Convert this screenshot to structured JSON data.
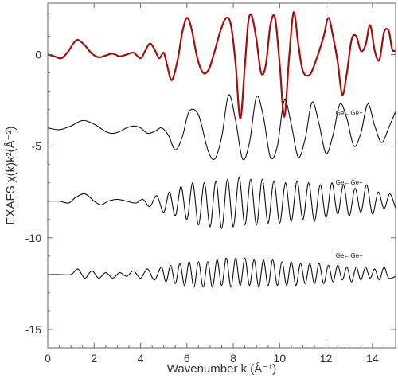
{
  "chart_data": {
    "type": "line",
    "title": "",
    "xlabel": "Wavenumber k (Å⁻¹)",
    "ylabel": "EXAFS χ(k)k²(Å⁻²)",
    "xlim": [
      0,
      15
    ],
    "ylim": [
      -16,
      2.8
    ],
    "xticks": [
      0,
      2,
      4,
      6,
      8,
      10,
      12,
      14
    ],
    "yticks": [
      0,
      -5,
      -10,
      -15
    ],
    "xtick_labels": [
      "0",
      "2",
      "4",
      "6",
      "8",
      "10",
      "12",
      "14"
    ],
    "ytick_labels": [
      "0",
      "-5",
      "-10",
      "-15"
    ],
    "grid": false,
    "colors": {
      "measured": "#a01010",
      "components": "#111111"
    },
    "annotations": [
      {
        "text": "Ge←Ge−",
        "x": 13.0,
        "y": -3.3
      },
      {
        "text": "Ge←Ge−",
        "x": 13.0,
        "y": -7.1
      },
      {
        "text": "Ge←Ge−",
        "x": 13.0,
        "y": -11.1
      }
    ],
    "series": [
      {
        "color": "#a01010",
        "x": [
          0,
          0.3,
          0.6,
          0.9,
          1.1,
          1.3,
          1.6,
          1.9,
          2.2,
          2.5,
          2.8,
          3.1,
          3.4,
          3.7,
          4.0,
          4.2,
          4.4,
          4.6,
          4.8,
          5.0,
          5.15,
          5.35,
          5.6,
          5.8,
          6.0,
          6.2,
          6.45,
          6.7,
          6.95,
          7.2,
          7.45,
          7.7,
          7.9,
          8.1,
          8.3,
          8.5,
          8.65,
          8.8,
          9.0,
          9.2,
          9.4,
          9.6,
          9.8,
          10.0,
          10.2,
          10.4,
          10.6,
          10.8,
          11.0,
          11.3,
          11.6,
          11.9,
          12.1,
          12.3,
          12.5,
          12.7,
          12.9,
          13.1,
          13.3,
          13.5,
          13.7,
          13.9,
          14.1,
          14.3,
          14.5,
          14.7,
          14.85,
          15.0
        ],
        "y": [
          0,
          -0.1,
          -0.2,
          0.2,
          0.6,
          0.8,
          0.5,
          0.05,
          -0.15,
          -0.05,
          0.05,
          -0.1,
          0,
          0.1,
          -0.2,
          0.2,
          0.6,
          0.3,
          -0.2,
          0.1,
          -0.6,
          -1.4,
          -0.3,
          1.2,
          2.0,
          1.4,
          -0.2,
          -1.0,
          -0.8,
          0.2,
          1.3,
          2.0,
          1.6,
          -0.5,
          -3.5,
          -0.6,
          1.8,
          2.1,
          0.8,
          -1.0,
          -0.6,
          1.6,
          2.0,
          -0.5,
          -3.4,
          -0.3,
          2.3,
          0.6,
          -0.9,
          -1.1,
          -0.2,
          1.0,
          2.0,
          1.0,
          -0.4,
          -2.2,
          -1.0,
          0.8,
          1.0,
          0.2,
          0.5,
          1.6,
          0.2,
          -0.3,
          1.2,
          1.3,
          0.3,
          0.2
        ]
      },
      {
        "color": "#111111",
        "x": [
          0,
          0.5,
          1.0,
          1.5,
          2.0,
          2.5,
          2.8,
          3.1,
          3.4,
          3.7,
          4.0,
          4.3,
          4.6,
          4.9,
          5.2,
          5.5,
          5.8,
          6.1,
          6.5,
          6.9,
          7.2,
          7.5,
          7.8,
          8.1,
          8.4,
          8.7,
          9.0,
          9.3,
          9.6,
          9.9,
          10.2,
          10.5,
          10.8,
          11.1,
          11.4,
          11.7,
          12.0,
          12.3,
          12.6,
          12.9,
          13.2,
          13.5,
          13.8,
          14.1,
          14.4,
          14.7,
          15.0
        ],
        "y": [
          -4.0,
          -4.1,
          -3.9,
          -3.6,
          -3.8,
          -4.2,
          -4.3,
          -4.2,
          -4.0,
          -3.9,
          -4.0,
          -4.3,
          -4.2,
          -4.0,
          -4.4,
          -5.2,
          -4.5,
          -3.1,
          -3.3,
          -5.2,
          -5.7,
          -4.5,
          -2.2,
          -3.6,
          -5.7,
          -4.8,
          -2.3,
          -3.4,
          -5.6,
          -5.0,
          -2.5,
          -3.8,
          -5.6,
          -4.6,
          -2.6,
          -3.8,
          -5.4,
          -4.4,
          -2.7,
          -3.5,
          -5.0,
          -4.3,
          -2.7,
          -3.9,
          -4.8,
          -4.0,
          -3.1
        ]
      },
      {
        "color": "#111111",
        "x": [
          0,
          0.5,
          0.9,
          1.2,
          1.6,
          2.0,
          2.3,
          2.6,
          3.0,
          3.4,
          3.8,
          4.1,
          4.4,
          4.7,
          5.0,
          5.25,
          5.5,
          5.75,
          6.0,
          6.25,
          6.5,
          6.75,
          7.0,
          7.25,
          7.5,
          7.75,
          8.0,
          8.25,
          8.5,
          8.75,
          9.0,
          9.25,
          9.5,
          9.75,
          10.0,
          10.25,
          10.5,
          10.75,
          11.0,
          11.25,
          11.5,
          11.75,
          12.0,
          12.25,
          12.5,
          12.75,
          13.0,
          13.25,
          13.5,
          13.75,
          14.0,
          14.25,
          14.5,
          14.75,
          15.0
        ],
        "y": [
          -8.0,
          -8.0,
          -8.1,
          -7.8,
          -7.6,
          -8.0,
          -8.2,
          -8.0,
          -7.9,
          -8.0,
          -8.1,
          -7.9,
          -8.3,
          -7.7,
          -8.6,
          -7.5,
          -8.8,
          -7.2,
          -9.0,
          -7.0,
          -9.3,
          -7.0,
          -9.4,
          -6.9,
          -9.5,
          -6.8,
          -9.4,
          -6.7,
          -9.3,
          -6.8,
          -9.3,
          -6.8,
          -9.2,
          -6.9,
          -9.2,
          -7.0,
          -9.1,
          -6.9,
          -9.0,
          -7.0,
          -9.1,
          -7.1,
          -8.9,
          -7.0,
          -8.7,
          -7.1,
          -8.8,
          -7.3,
          -8.6,
          -7.1,
          -8.7,
          -7.5,
          -8.4,
          -7.6,
          -8.4
        ]
      },
      {
        "color": "#111111",
        "x": [
          0,
          0.5,
          1.0,
          1.3,
          1.6,
          1.9,
          2.2,
          2.5,
          2.8,
          3.1,
          3.4,
          3.7,
          4.0,
          4.3,
          4.6,
          4.9,
          5.1,
          5.3,
          5.5,
          5.7,
          5.9,
          6.1,
          6.3,
          6.5,
          6.7,
          6.9,
          7.1,
          7.3,
          7.5,
          7.7,
          7.9,
          8.1,
          8.3,
          8.5,
          8.7,
          8.9,
          9.1,
          9.3,
          9.5,
          9.7,
          9.9,
          10.1,
          10.3,
          10.5,
          10.7,
          10.9,
          11.1,
          11.3,
          11.5,
          11.7,
          11.9,
          12.1,
          12.3,
          12.5,
          12.7,
          12.9,
          13.1,
          13.3,
          13.5,
          13.7,
          13.9,
          14.1,
          14.3,
          14.5,
          14.7,
          15.0
        ],
        "y": [
          -12.0,
          -12.0,
          -12.0,
          -11.7,
          -12.2,
          -11.8,
          -12.2,
          -11.9,
          -12.2,
          -11.9,
          -12.1,
          -11.8,
          -12.2,
          -11.7,
          -12.3,
          -11.6,
          -12.4,
          -11.5,
          -12.5,
          -11.4,
          -12.6,
          -11.3,
          -12.7,
          -11.3,
          -12.7,
          -11.3,
          -12.7,
          -11.2,
          -12.6,
          -11.1,
          -12.7,
          -11.1,
          -12.6,
          -11.1,
          -12.6,
          -11.2,
          -12.7,
          -11.2,
          -12.6,
          -11.2,
          -12.6,
          -11.3,
          -12.6,
          -11.3,
          -12.6,
          -11.4,
          -12.5,
          -11.4,
          -12.5,
          -11.4,
          -12.5,
          -11.5,
          -12.4,
          -11.5,
          -12.3,
          -11.6,
          -12.4,
          -11.6,
          -12.3,
          -11.6,
          -12.2,
          -11.7,
          -12.3,
          -11.6,
          -12.2,
          -12.1
        ]
      }
    ]
  }
}
